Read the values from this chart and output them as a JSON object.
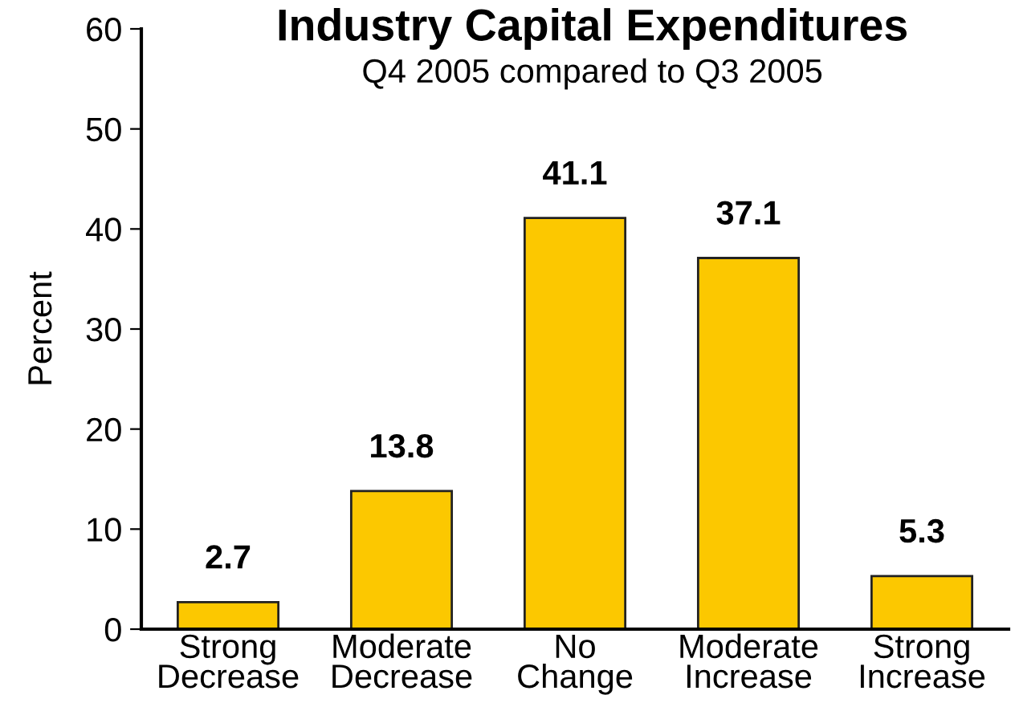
{
  "chart_data": {
    "type": "bar",
    "title": "Industry Capital Expenditures",
    "subtitle": "Q4 2005 compared to Q3 2005",
    "ylabel": "Percent",
    "categories": [
      "Strong\nDecrease",
      "Moderate\nDecrease",
      "No\nChange",
      "Moderate\nIncrease",
      "Strong\nIncrease"
    ],
    "values": [
      2.7,
      13.8,
      41.1,
      37.1,
      5.3
    ],
    "color": "#fcc800",
    "ylim": [
      0,
      60
    ],
    "yticks": [
      0,
      10,
      20,
      30,
      40,
      50,
      60
    ],
    "grid": false,
    "data_labels": true
  }
}
